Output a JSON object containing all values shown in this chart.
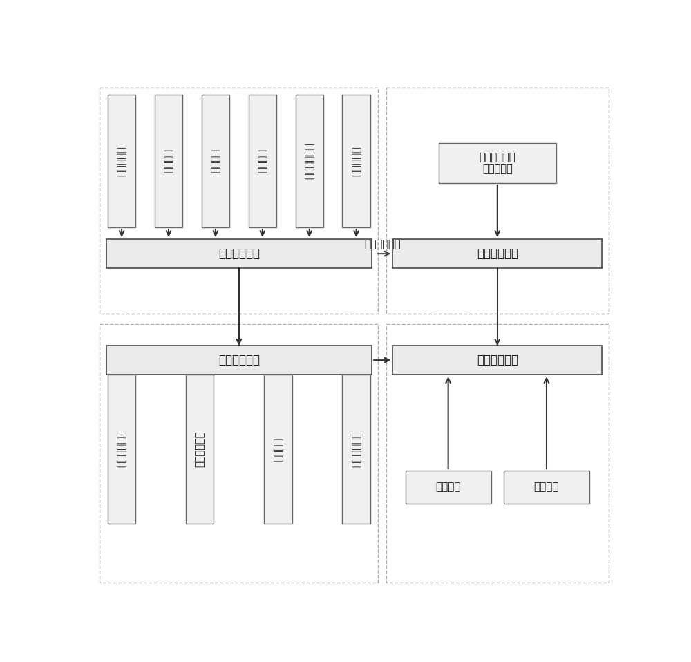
{
  "bg_color": "#ffffff",
  "top_input_boxes": [
    "主簧静刚度",
    "橡胶阵尼",
    "液室形状",
    "流道长度",
    "流道截面形状",
    "液压油密度"
  ],
  "collect_box": "数据采集单元",
  "process_box": "数据处理单元",
  "model_box": "模型建立单元",
  "optimize_box": "优化设计单元",
  "adjust_box": "调整参数优化\n动特性曲线",
  "feedback_label": "优化设计反馈",
  "bottom_input_boxes": [
    "等效活塞面积",
    "流道过流面积",
    "流道阵尼",
    "液室体积柔度"
  ],
  "model_sub_boxes": [
    "数学模型",
    "程序实现"
  ]
}
